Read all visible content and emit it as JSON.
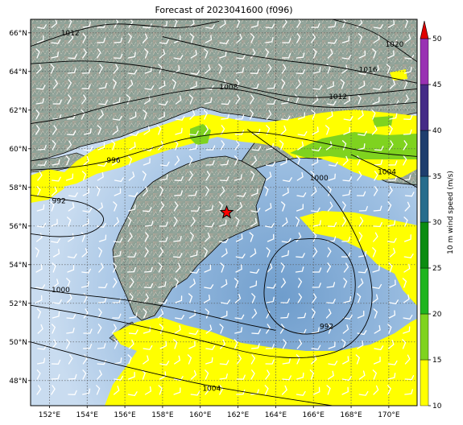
{
  "title": "Forecast of 2023041600 (f096)",
  "map": {
    "lon_range": [
      151,
      171.5
    ],
    "lat_range": [
      46.7,
      66.7
    ],
    "lon_ticks": [
      {
        "value": 152,
        "label": "152°E"
      },
      {
        "value": 154,
        "label": "154°E"
      },
      {
        "value": 156,
        "label": "156°E"
      },
      {
        "value": 158,
        "label": "158°E"
      },
      {
        "value": 160,
        "label": "160°E"
      },
      {
        "value": 162,
        "label": "162°E"
      },
      {
        "value": 164,
        "label": "164°E"
      },
      {
        "value": 166,
        "label": "166°E"
      },
      {
        "value": 168,
        "label": "168°E"
      },
      {
        "value": 170,
        "label": "170°E"
      }
    ],
    "lat_ticks": [
      {
        "value": 48,
        "label": "48°N"
      },
      {
        "value": 50,
        "label": "50°N"
      },
      {
        "value": 52,
        "label": "52°N"
      },
      {
        "value": 54,
        "label": "54°N"
      },
      {
        "value": 56,
        "label": "56°N"
      },
      {
        "value": 58,
        "label": "58°N"
      },
      {
        "value": 60,
        "label": "60°N"
      },
      {
        "value": 62,
        "label": "62°N"
      },
      {
        "value": 64,
        "label": "64°N"
      },
      {
        "value": 66,
        "label": "66°N"
      }
    ],
    "gridlines": true,
    "marker": {
      "lon": 161.4,
      "lat": 56.7,
      "symbol": "red-star"
    },
    "isobars": [
      {
        "value": 1012,
        "label": "1012",
        "label_lon": 153.1,
        "label_lat": 66.0,
        "points": [
          [
            151,
            65.3
          ],
          [
            153,
            66
          ],
          [
            155,
            66.5
          ],
          [
            157,
            66.4
          ],
          [
            159,
            66.2
          ],
          [
            161,
            66.6
          ]
        ]
      },
      {
        "value": 1020,
        "label": "1020",
        "label_lon": 170.3,
        "label_lat": 65.4,
        "points": [
          [
            167,
            66.7
          ],
          [
            169,
            66.2
          ],
          [
            170.5,
            65.2
          ],
          [
            171.5,
            64.5
          ]
        ]
      },
      {
        "value": 1016,
        "label": "1016",
        "label_lon": 168.9,
        "label_lat": 64.1,
        "points": [
          [
            158,
            65.8
          ],
          [
            161,
            65.1
          ],
          [
            164,
            64.6
          ],
          [
            167,
            64.3
          ],
          [
            169.5,
            63.8
          ],
          [
            171.5,
            63.4
          ]
        ]
      },
      {
        "value": 1012,
        "label": "1012",
        "label_lon": 167.3,
        "label_lat": 62.7,
        "points": [
          [
            151,
            64.4
          ],
          [
            154,
            64.6
          ],
          [
            157,
            64.3
          ],
          [
            159,
            63.9
          ],
          [
            161,
            63.5
          ],
          [
            164,
            62.8
          ],
          [
            166,
            62.6
          ],
          [
            168.5,
            62.8
          ],
          [
            171.5,
            63.1
          ]
        ]
      },
      {
        "value": 1008,
        "label": "1008",
        "label_lon": 161.5,
        "label_lat": 63.2,
        "points": [
          [
            151,
            61.3
          ],
          [
            153,
            61.6
          ],
          [
            155,
            62.2
          ],
          [
            157,
            62.6
          ],
          [
            159,
            63.0
          ],
          [
            161,
            63.2
          ],
          [
            163,
            62.9
          ],
          [
            165,
            62.3
          ],
          [
            167,
            62.1
          ],
          [
            169,
            62.2
          ],
          [
            171.5,
            62.4
          ]
        ]
      },
      {
        "value": 996,
        "label": "996",
        "label_lon": 155.4,
        "label_lat": 59.4,
        "points": [
          [
            151,
            58.9
          ],
          [
            153,
            59.0
          ],
          [
            155,
            59.3
          ],
          [
            157,
            59.9
          ],
          [
            159,
            60.5
          ],
          [
            161,
            60.8
          ],
          [
            163,
            60.9
          ],
          [
            165,
            60.6
          ],
          [
            167,
            60.2
          ],
          [
            169,
            59.8
          ],
          [
            171.5,
            59.6
          ]
        ]
      },
      {
        "value": 1000,
        "label": "1000",
        "label_lon": 166.3,
        "label_lat": 58.5,
        "points": [
          [
            162.5,
            61.0
          ],
          [
            164.5,
            59.6
          ],
          [
            166,
            58.6
          ],
          [
            167.5,
            57.0
          ],
          [
            169,
            54.0
          ],
          [
            169.2,
            51.5
          ],
          [
            168,
            49.7
          ],
          [
            165.8,
            49.1
          ],
          [
            163,
            49.3
          ],
          [
            160,
            50.1
          ],
          [
            156.5,
            50.9
          ],
          [
            154,
            51.4
          ],
          [
            151,
            51.9
          ]
        ]
      },
      {
        "value": 1004,
        "label": "1004",
        "label_lon": 169.9,
        "label_lat": 58.8,
        "points": [
          [
            168,
            59.7
          ],
          [
            170,
            58.8
          ],
          [
            171.5,
            58.0
          ]
        ]
      },
      {
        "value": 1000,
        "label": "1000",
        "label_lon": 152.6,
        "label_lat": 52.7,
        "points": [
          [
            151,
            52.8
          ],
          [
            153,
            52.5
          ],
          [
            156,
            52.2
          ],
          [
            159,
            51.7
          ],
          [
            162,
            51.0
          ],
          [
            164,
            50.6
          ]
        ]
      },
      {
        "value": 992,
        "label": "992",
        "label_lon": 152.5,
        "label_lat": 57.3,
        "points": [
          [
            151,
            57.6
          ],
          [
            152.5,
            57.4
          ],
          [
            154,
            57.2
          ],
          [
            155.1,
            56.4
          ],
          [
            154.3,
            55.6
          ],
          [
            152.5,
            55.4
          ],
          [
            151,
            55.6
          ]
        ]
      },
      {
        "value": 992,
        "label": "992",
        "label_lon": 166.7,
        "label_lat": 50.8,
        "points": [
          [
            165,
            55.3
          ],
          [
            166.8,
            55.4
          ],
          [
            168.1,
            54.3
          ],
          [
            168.3,
            52.4
          ],
          [
            167.6,
            51.0
          ],
          [
            166,
            50.3
          ],
          [
            164.3,
            50.6
          ],
          [
            163.3,
            51.9
          ],
          [
            163.5,
            53.8
          ],
          [
            164.1,
            54.8
          ],
          [
            165,
            55.3
          ]
        ]
      },
      {
        "value": 1004,
        "label": "1004",
        "label_lon": 160.6,
        "label_lat": 47.6,
        "points": [
          [
            151,
            50.0
          ],
          [
            154,
            49.2
          ],
          [
            157,
            48.5
          ],
          [
            160,
            47.8
          ],
          [
            163,
            47.3
          ],
          [
            165,
            47.0
          ],
          [
            167,
            46.7
          ]
        ]
      }
    ]
  },
  "colorbar": {
    "label": "10 m wind speed (m/s)",
    "ticks": [
      "10",
      "15",
      "20",
      "25",
      "30",
      "35",
      "40",
      "45",
      "50"
    ],
    "min": 10,
    "max": 50,
    "levels": [
      {
        "from": 10,
        "to": 15,
        "color": "#ffff00"
      },
      {
        "from": 15,
        "to": 20,
        "color": "#7fd31f"
      },
      {
        "from": 20,
        "to": 25,
        "color": "#1fb41f"
      },
      {
        "from": 25,
        "to": 30,
        "color": "#0b8c11"
      },
      {
        "from": 30,
        "to": 35,
        "color": "#276d8d"
      },
      {
        "from": 35,
        "to": 40,
        "color": "#1e3e6e"
      },
      {
        "from": 40,
        "to": 45,
        "color": "#452b87"
      },
      {
        "from": 45,
        "to": 50,
        "color": "#9931b3"
      }
    ],
    "extend_color": "#e00000"
  },
  "colors": {
    "ocean": "#b9d3ec",
    "ocean_deep": "#7fa9d3",
    "land": "#8a9a8c",
    "isobar": "#000000",
    "wind_barb": "#ffffff",
    "marker": "#ff0000"
  }
}
